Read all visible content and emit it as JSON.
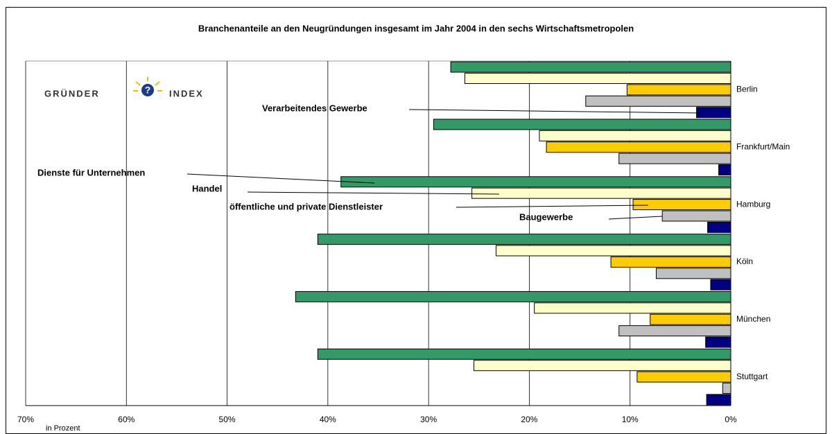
{
  "logo": {
    "left": "GRÜNDER",
    "right": "INDEX"
  },
  "chart_data": {
    "type": "hbar",
    "title": "Branchenanteile an den Neugründungen insgesamt im Jahr 2004 in den sechs Wirtschaftsmetropolen",
    "x_label": "in Prozent",
    "categories": [
      "Berlin",
      "Frankfurt/Main",
      "Hamburg",
      "Köln",
      "München",
      "Stuttgart"
    ],
    "series": [
      {
        "name": "Dienste für Unternehmen",
        "color": "#339966",
        "values": [
          27.8,
          29.5,
          38.7,
          41.0,
          43.2,
          41.0
        ]
      },
      {
        "name": "Handel",
        "color": "#ffffcc",
        "values": [
          26.4,
          19.0,
          25.7,
          23.3,
          19.5,
          25.5
        ]
      },
      {
        "name": "öffentliche und private Dienstleister",
        "color": "#ffcc00",
        "values": [
          10.3,
          18.3,
          9.7,
          11.9,
          8.0,
          9.3
        ]
      },
      {
        "name": "Baugewerbe",
        "color": "#c0c0c0",
        "values": [
          14.4,
          11.1,
          6.8,
          7.4,
          11.1,
          0.8
        ]
      },
      {
        "name": "Verarbeitendes Gewerbe",
        "color": "#000080",
        "values": [
          3.4,
          1.2,
          2.3,
          2.0,
          2.5,
          2.4
        ]
      }
    ],
    "xlim": [
      70,
      0
    ],
    "xticks": [
      {
        "value": 70,
        "label": "70%"
      },
      {
        "value": 60,
        "label": "60%"
      },
      {
        "value": 50,
        "label": "50%"
      },
      {
        "value": 40,
        "label": "40%"
      },
      {
        "value": 30,
        "label": "30%"
      },
      {
        "value": 20,
        "label": "20%"
      },
      {
        "value": 10,
        "label": "10%"
      },
      {
        "value": 0,
        "label": "0%"
      }
    ],
    "grid": true
  }
}
